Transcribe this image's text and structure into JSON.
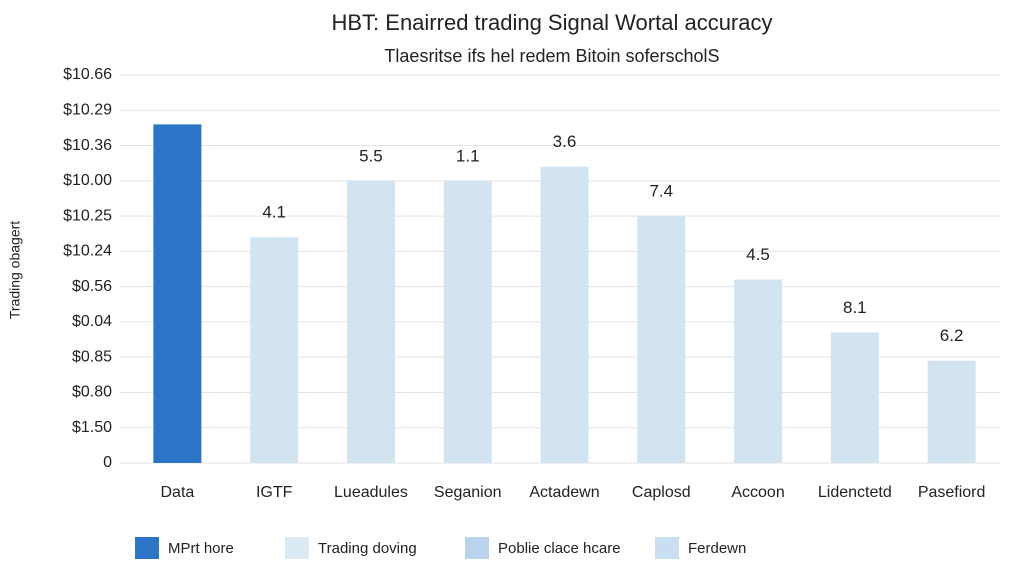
{
  "chart_data": {
    "type": "bar",
    "title": "HBT: Enairred trading Signal Wortal accuracy",
    "subtitle": "Tlaesritse ifs hel redem Bitoin soferscholS",
    "y_label": "Trading obagert",
    "categories": [
      "Data",
      "IGTF",
      "Lueadules",
      "Seganion",
      "Actadewn",
      "Caplosd",
      "Accoon",
      "Lidenctetd",
      "Pasefiord"
    ],
    "values": [
      9.6,
      6.4,
      8.0,
      8.0,
      8.4,
      7.0,
      5.2,
      3.7,
      2.9
    ],
    "bar_labels": [
      null,
      "4.1",
      "5.5",
      "1.1",
      "3.6",
      "7.4",
      "4.5",
      "8.1",
      "6.2"
    ],
    "colors": [
      "#2b74c6",
      "#d3e4f1",
      "#d3e4f1",
      "#d3e4f1",
      "#d3e4f1",
      "#d3e4f1",
      "#d3e4f1",
      "#d3e4f1",
      "#d3e4f1"
    ],
    "ylim": [
      0,
      11
    ],
    "yticks": [
      {
        "value": 0,
        "label": "0"
      },
      {
        "value": 1,
        "label": "$1.50"
      },
      {
        "value": 2,
        "label": "$0.80"
      },
      {
        "value": 3,
        "label": "$0.85"
      },
      {
        "value": 4,
        "label": "$0.04"
      },
      {
        "value": 5,
        "label": "$0.56"
      },
      {
        "value": 6,
        "label": "$10.24"
      },
      {
        "value": 7,
        "label": "$10.25"
      },
      {
        "value": 8,
        "label": "$10.00"
      },
      {
        "value": 9,
        "label": "$10.36"
      },
      {
        "value": 10,
        "label": "$10.29"
      },
      {
        "value": 11,
        "label": "$10.66"
      }
    ],
    "grid": true,
    "legend": [
      {
        "name": "MPrt hore",
        "color": "#2b74c6"
      },
      {
        "name": "Trading doving",
        "color": "#dceaf4"
      },
      {
        "name": "Poblie clace hcare",
        "color": "#b9d4ea"
      },
      {
        "name": "Ferdewn",
        "color": "#c9def0"
      }
    ]
  }
}
